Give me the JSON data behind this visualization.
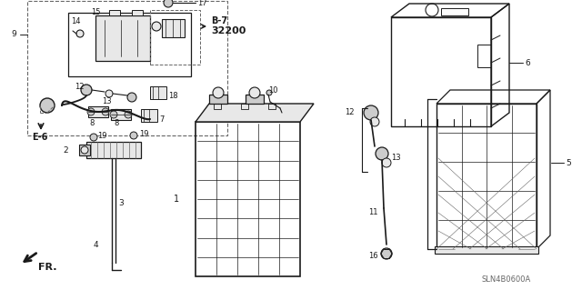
{
  "bg_color": "#ffffff",
  "fig_width": 6.4,
  "fig_height": 3.19,
  "dpi": 100,
  "sln_code": "SLN4B0600A",
  "b7_label": "B-7",
  "b7_num": "32200",
  "e6_label": "E-6",
  "fr_label": "FR.",
  "dk": "#1a1a1a",
  "gray": "#666666",
  "light": "#cccccc",
  "lighter": "#e8e8e8"
}
